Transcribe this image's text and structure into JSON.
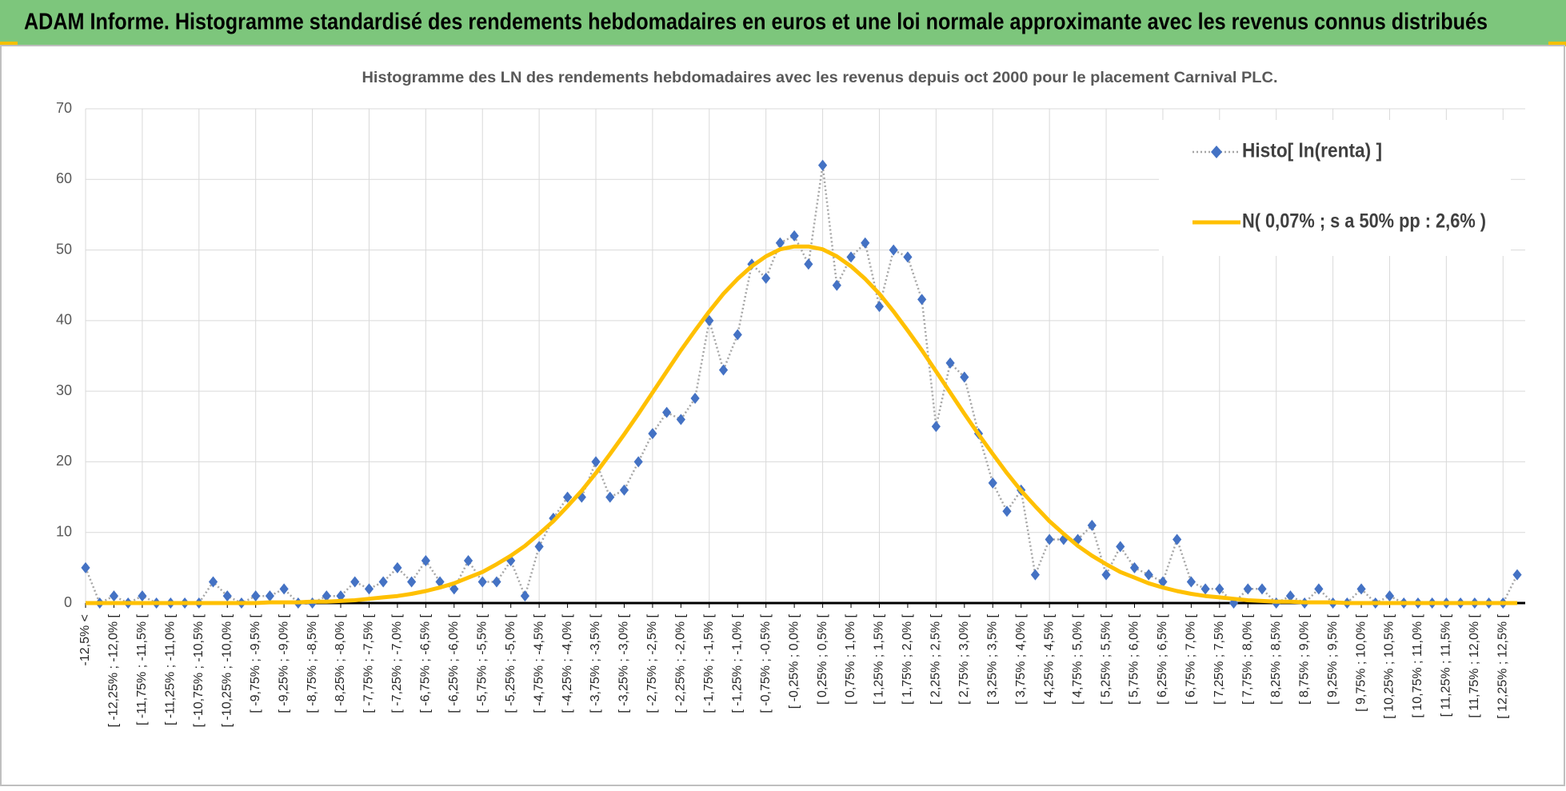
{
  "chart_data": {
    "type": "line",
    "title": "ADAM Informe. Histogramme standardisé des rendements hebdomadaires en euros et une loi normale approximante avec les revenus connus distribués",
    "subtitle": "Histogramme  des LN des rendements hebdomadaires avec les revenus depuis oct 2000 pour le placement Carnival PLC.",
    "categories": [
      "-12,5% <",
      null,
      "[ -12,25% ; -12,0% [",
      null,
      "[ -11,75% ; -11,5% [",
      null,
      "[ -11,25% ; -11,0% [",
      null,
      "[ -10,75% ; -10,5% [",
      null,
      "[ -10,25% ; -10,0% [",
      null,
      "[ -9,75% ; -9,5% [",
      null,
      "[ -9,25% ; -9,0% [",
      null,
      "[ -8,75% ; -8,5% [",
      null,
      "[ -8,25% ; -8,0% [",
      null,
      "[ -7,75% ; -7,5% [",
      null,
      "[ -7,25% ; -7,0% [",
      null,
      "[ -6,75% ; -6,5% [",
      null,
      "[ -6,25% ; -6,0% [",
      null,
      "[ -5,75% ; -5,5% [",
      null,
      "[ -5,25% ; -5,0% [",
      null,
      "[ -4,75% ; -4,5% [",
      null,
      "[ -4,25% ; -4,0% [",
      null,
      "[ -3,75% ; -3,5% [",
      null,
      "[ -3,25% ; -3,0% [",
      null,
      "[ -2,75% ; -2,5% [",
      null,
      "[ -2,25% ; -2,0% [",
      null,
      "[ -1,75% ; -1,5% [",
      null,
      "[ -1,25% ; -1,0% [",
      null,
      "[ -0,75% ; -0,5% [",
      null,
      "[ -0,25% ; 0,0% [",
      null,
      "[ 0,25% ; 0,5% [",
      null,
      "[ 0,75% ; 1,0% [",
      null,
      "[ 1,25% ; 1,5% [",
      null,
      "[ 1,75% ; 2,0% [",
      null,
      "[ 2,25% ; 2,5% [",
      null,
      "[ 2,75% ; 3,0% [",
      null,
      "[ 3,25% ; 3,5% [",
      null,
      "[ 3,75% ; 4,0% [",
      null,
      "[ 4,25% ; 4,5% [",
      null,
      "[ 4,75% ; 5,0% [",
      null,
      "[ 5,25% ; 5,5% [",
      null,
      "[ 5,75% ; 6,0% [",
      null,
      "[ 6,25% ; 6,5% [",
      null,
      "[ 6,75% ; 7,0% [",
      null,
      "[ 7,25% ; 7,5% [",
      null,
      "[ 7,75% ; 8,0% [",
      null,
      "[ 8,25% ; 8,5% [",
      null,
      "[ 8,75% ; 9,0% [",
      null,
      "[ 9,25% ; 9,5% [",
      null,
      "[ 9,75% ; 10,0% [",
      null,
      "[ 10,25% ; 10,5% [",
      null,
      "[ 10,75% ; 11,0% [",
      null,
      "[ 11,25% ; 11,5% [",
      null,
      "[ 11,75% ; 12,0% [",
      null,
      "[ 12,25% ; 12,5% [",
      null
    ],
    "series": [
      {
        "name": "Histo[ ln(renta) ]",
        "color": "#4472c4",
        "line_color": "#a6a6a6",
        "marker": "diamond",
        "line_style": "dotted",
        "values": [
          5,
          0,
          1,
          0,
          1,
          0,
          0,
          0,
          0,
          3,
          1,
          0,
          1,
          1,
          2,
          0,
          0,
          1,
          1,
          3,
          2,
          3,
          5,
          3,
          6,
          3,
          2,
          6,
          3,
          3,
          6,
          1,
          8,
          12,
          15,
          15,
          20,
          15,
          16,
          20,
          24,
          27,
          26,
          29,
          40,
          33,
          38,
          48,
          46,
          51,
          52,
          48,
          62,
          45,
          49,
          51,
          42,
          50,
          49,
          43,
          25,
          34,
          32,
          24,
          17,
          13,
          16,
          4,
          9,
          9,
          9,
          11,
          4,
          8,
          5,
          4,
          3,
          9,
          3,
          2,
          2,
          0,
          2,
          2,
          0,
          1,
          0,
          2,
          0,
          0,
          2,
          0,
          1,
          0,
          0,
          0,
          0,
          0,
          0,
          0,
          0,
          4
        ]
      },
      {
        "name": "N( 0,07% ; s a 50% pp : 2,6% )",
        "color": "#ffc000",
        "marker": "none",
        "line_style": "solid",
        "values": [
          0,
          0,
          0,
          0,
          0,
          0,
          0,
          0,
          0,
          0,
          0,
          0,
          0,
          0.1,
          0.1,
          0.1,
          0.2,
          0.2,
          0.3,
          0.4,
          0.6,
          0.8,
          1.0,
          1.3,
          1.7,
          2.2,
          2.8,
          3.6,
          4.4,
          5.5,
          6.7,
          8.1,
          9.8,
          11.6,
          13.7,
          15.9,
          18.4,
          21.1,
          23.9,
          26.8,
          29.8,
          32.8,
          35.8,
          38.6,
          41.3,
          43.8,
          45.9,
          47.7,
          49.1,
          50.1,
          50.5,
          50.5,
          50.1,
          49.1,
          47.7,
          45.9,
          43.8,
          41.3,
          38.6,
          35.8,
          32.8,
          29.8,
          26.8,
          23.9,
          21.1,
          18.4,
          15.9,
          13.7,
          11.6,
          9.8,
          8.1,
          6.7,
          5.5,
          4.4,
          3.6,
          2.8,
          2.2,
          1.7,
          1.3,
          1.0,
          0.8,
          0.6,
          0.4,
          0.3,
          0.2,
          0.2,
          0.1,
          0.1,
          0.1,
          0,
          0,
          0,
          0,
          0,
          0,
          0,
          0,
          0,
          0,
          0,
          0,
          0
        ]
      }
    ],
    "ylim": [
      0,
      70
    ],
    "yticks": [
      0,
      10,
      20,
      30,
      40,
      50,
      60,
      70
    ],
    "grid": true,
    "legend": "upper right"
  }
}
